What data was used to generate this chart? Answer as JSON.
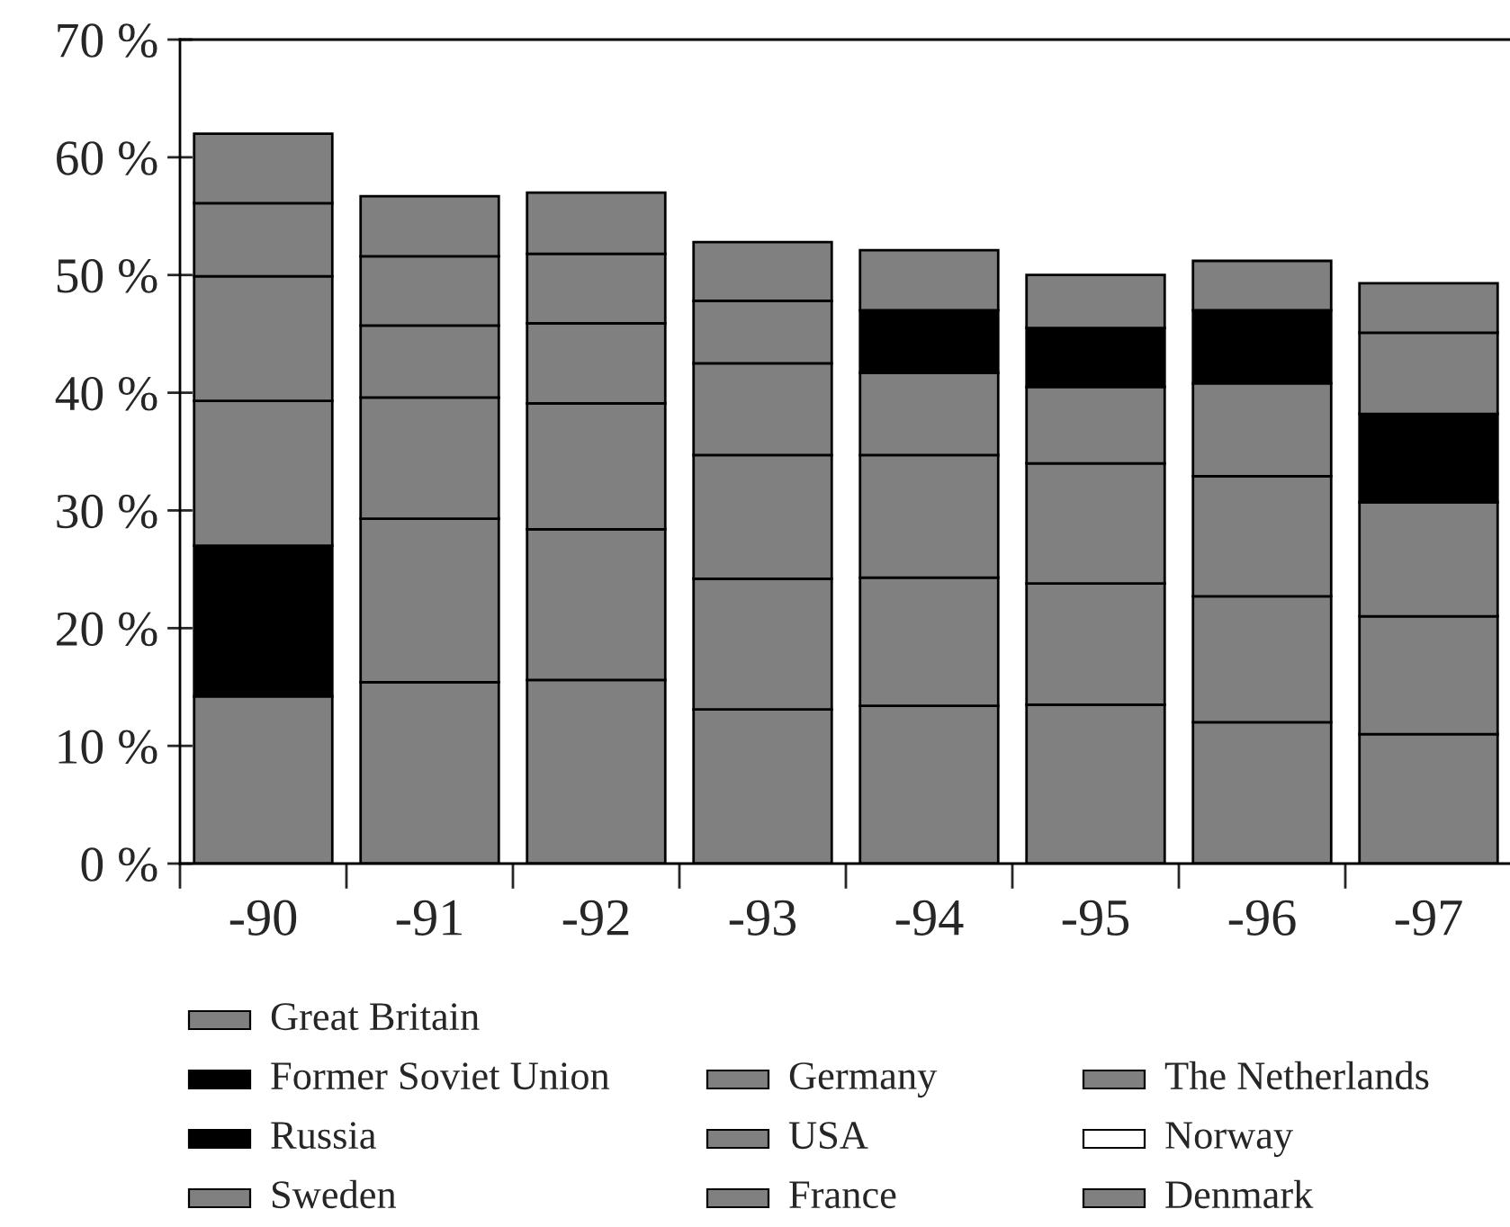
{
  "chart_data": {
    "type": "bar",
    "stacked": true,
    "categories": [
      "-90",
      "-91",
      "-92",
      "-93",
      "-94",
      "-95",
      "-96",
      "-97"
    ],
    "series": [
      {
        "name": "Great Britain",
        "color": "#808080",
        "values": [
          14.2,
          15.4,
          15.6,
          13.1,
          13.4,
          13.5,
          12.0,
          11.0
        ]
      },
      {
        "name": "Former Soviet Union",
        "color": "#000000",
        "values": [
          12.8,
          0,
          0,
          0,
          0,
          0,
          0,
          0
        ]
      },
      {
        "name": "Germany",
        "color": "#808080",
        "values": [
          12.3,
          13.9,
          12.8,
          11.1,
          10.9,
          10.3,
          10.7,
          10.0
        ]
      },
      {
        "name": "The Netherlands",
        "color": "#808080",
        "values": [
          10.6,
          10.3,
          10.7,
          10.5,
          10.4,
          10.2,
          10.2,
          9.7
        ]
      },
      {
        "name": "USA",
        "color": "#808080",
        "values": [
          6.2,
          6.1,
          6.8,
          7.8,
          7.0,
          6.5,
          7.9,
          0
        ]
      },
      {
        "name": "Russia",
        "color": "#000000",
        "values": [
          0,
          0,
          0,
          0,
          5.3,
          5.0,
          6.2,
          7.5
        ]
      },
      {
        "name": "Sweden",
        "color": "#808080",
        "values": [
          5.9,
          5.9,
          5.9,
          5.3,
          5.1,
          4.5,
          4.2,
          6.9
        ]
      },
      {
        "name": "France",
        "color": "#808080",
        "values": [
          0,
          5.1,
          5.2,
          5.0,
          0,
          0,
          0,
          4.2
        ]
      },
      {
        "name": "Norway",
        "color": "#ffffff",
        "values": [
          0,
          0,
          0,
          0,
          0,
          0,
          0,
          0
        ]
      },
      {
        "name": "Denmark",
        "color": "#808080",
        "values": [
          0,
          0,
          0,
          0,
          0,
          0,
          0,
          0
        ]
      }
    ],
    "ylim": [
      0,
      70
    ],
    "yticks": [
      {
        "value": 0,
        "label": "0 %"
      },
      {
        "value": 10,
        "label": "10 %"
      },
      {
        "value": 20,
        "label": "20 %"
      },
      {
        "value": 30,
        "label": "30 %"
      },
      {
        "value": 40,
        "label": "40 %"
      },
      {
        "value": 50,
        "label": "50 %"
      },
      {
        "value": 60,
        "label": "60 %"
      },
      {
        "value": 70,
        "label": "70 %"
      }
    ],
    "grid": false,
    "legend": "bottom"
  }
}
